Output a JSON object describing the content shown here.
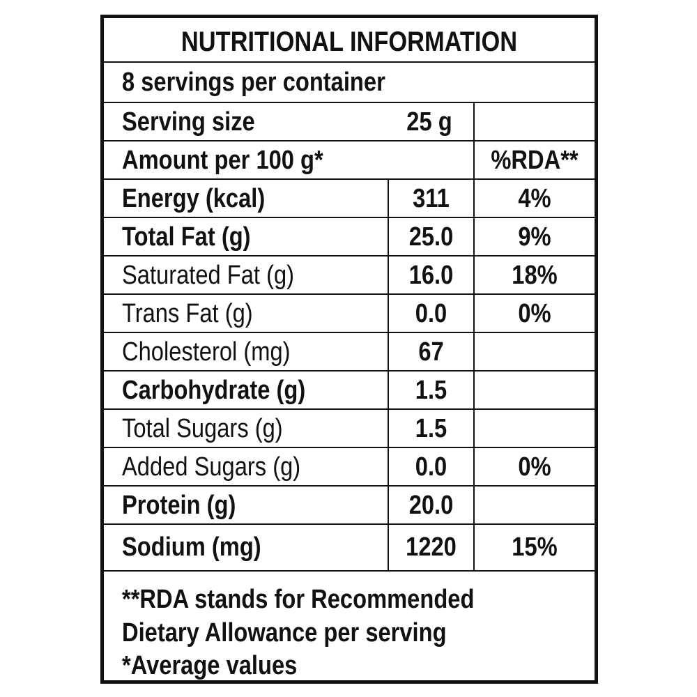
{
  "title": "NUTRITIONAL INFORMATION",
  "servings_per_container": "8 servings per container",
  "serving_size": {
    "label": "Serving size",
    "value": "25 g"
  },
  "amount_header": {
    "label": "Amount per 100 g*",
    "rda_header": "%RDA**"
  },
  "nutrients": [
    {
      "name": "Energy (kcal)",
      "value": "311",
      "rda": "4%",
      "bold": true
    },
    {
      "name": "Total Fat (g)",
      "value": "25.0",
      "rda": "9%",
      "bold": true
    },
    {
      "name": "Saturated Fat (g)",
      "value": "16.0",
      "rda": "18%",
      "bold": false
    },
    {
      "name": "Trans Fat (g)",
      "value": "0.0",
      "rda": "0%",
      "bold": false
    },
    {
      "name": "Cholesterol (mg)",
      "value": "67",
      "rda": "",
      "bold": false
    },
    {
      "name": "Carbohydrate (g)",
      "value": "1.5",
      "rda": "",
      "bold": true
    },
    {
      "name": "Total Sugars (g)",
      "value": "1.5",
      "rda": "",
      "bold": false
    },
    {
      "name": "Added Sugars (g)",
      "value": "0.0",
      "rda": "0%",
      "bold": false
    },
    {
      "name": "Protein (g)",
      "value": "20.0",
      "rda": "",
      "bold": true
    },
    {
      "name": "Sodium (mg)",
      "value": "1220",
      "rda": "15%",
      "bold": true
    }
  ],
  "footnotes": [
    "**RDA stands for Recommended",
    "Dietary Allowance per serving",
    "*Average values"
  ]
}
